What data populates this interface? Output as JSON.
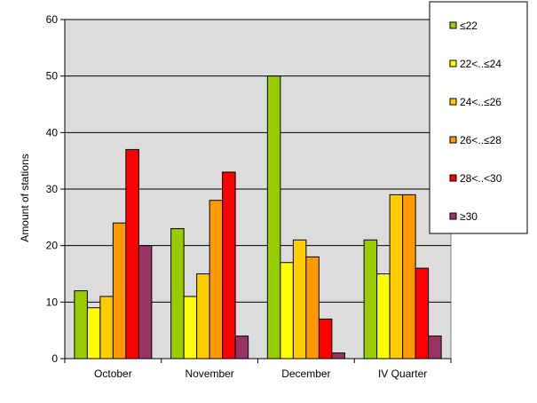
{
  "chart_data": {
    "type": "bar",
    "title": "",
    "xlabel": "",
    "ylabel": "Amount of stations",
    "ylim": [
      0,
      60
    ],
    "yticks": [
      0,
      10,
      20,
      30,
      40,
      50,
      60
    ],
    "grid": true,
    "legend_position": "top-right",
    "plot_background": "#dcdcdc",
    "categories": [
      "October",
      "November",
      "December",
      "IV Quarter"
    ],
    "series": [
      {
        "name": "≤22",
        "color": "#99cc00",
        "values": [
          12,
          23,
          50,
          21
        ]
      },
      {
        "name": "22<..≤24",
        "color": "#ffff00",
        "values": [
          9,
          11,
          17,
          15
        ]
      },
      {
        "name": "24<..≤26",
        "color": "#ffcc00",
        "values": [
          11,
          15,
          21,
          29
        ]
      },
      {
        "name": "26<..≤28",
        "color": "#ff9900",
        "values": [
          24,
          28,
          18,
          29
        ]
      },
      {
        "name": "28<..<30",
        "color": "#ff0000",
        "values": [
          37,
          33,
          7,
          16
        ]
      },
      {
        "name": "≥30",
        "color": "#993366",
        "values": [
          20,
          4,
          1,
          4
        ]
      }
    ]
  }
}
